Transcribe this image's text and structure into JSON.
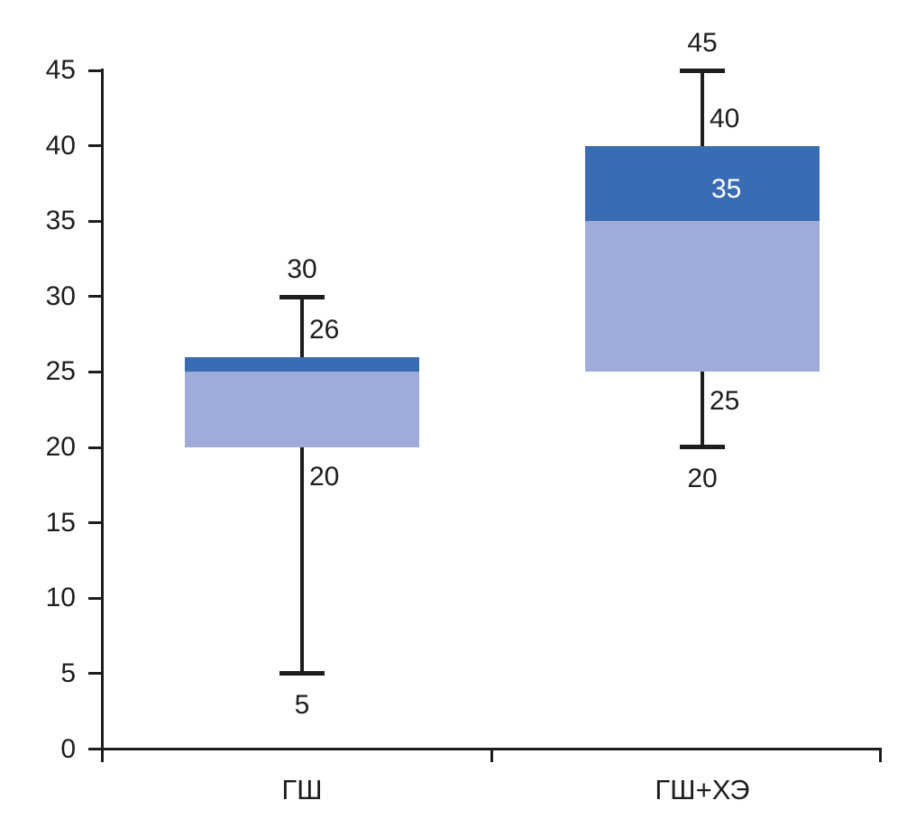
{
  "chart_data": {
    "type": "boxplot",
    "title": "",
    "xlabel": "",
    "ylabel": "",
    "categories": [
      "ГШ",
      "ГШ+ХЭ"
    ],
    "y_axis": {
      "min": 0,
      "max": 45,
      "step": 5,
      "ticks": [
        "0",
        "5",
        "10",
        "15",
        "20",
        "25",
        "30",
        "35",
        "40",
        "45"
      ]
    },
    "grid": false,
    "legend": null,
    "boxes": [
      {
        "category": "ГШ",
        "whisker_low": 5,
        "q1": 20,
        "median": 25,
        "q3": 26,
        "whisker_high": 30,
        "labels": {
          "whisker_high": "30",
          "q3": "26",
          "q1": "20",
          "whisker_low": "5"
        }
      },
      {
        "category": "ГШ+ХЭ",
        "whisker_low": 20,
        "q1": 25,
        "median": 35,
        "q3": 40,
        "whisker_high": 45,
        "labels": {
          "whisker_high": "45",
          "q3": "40",
          "median": "35",
          "q1": "25",
          "whisker_low": "20"
        }
      }
    ],
    "colors": {
      "box_upper": "#3A6CB4",
      "box_lower": "#9FACD9",
      "line": "#1D1D1B",
      "text": "#1D1D1B",
      "median_label_text": "#FFFFFF",
      "background": "#FFFFFF"
    }
  }
}
